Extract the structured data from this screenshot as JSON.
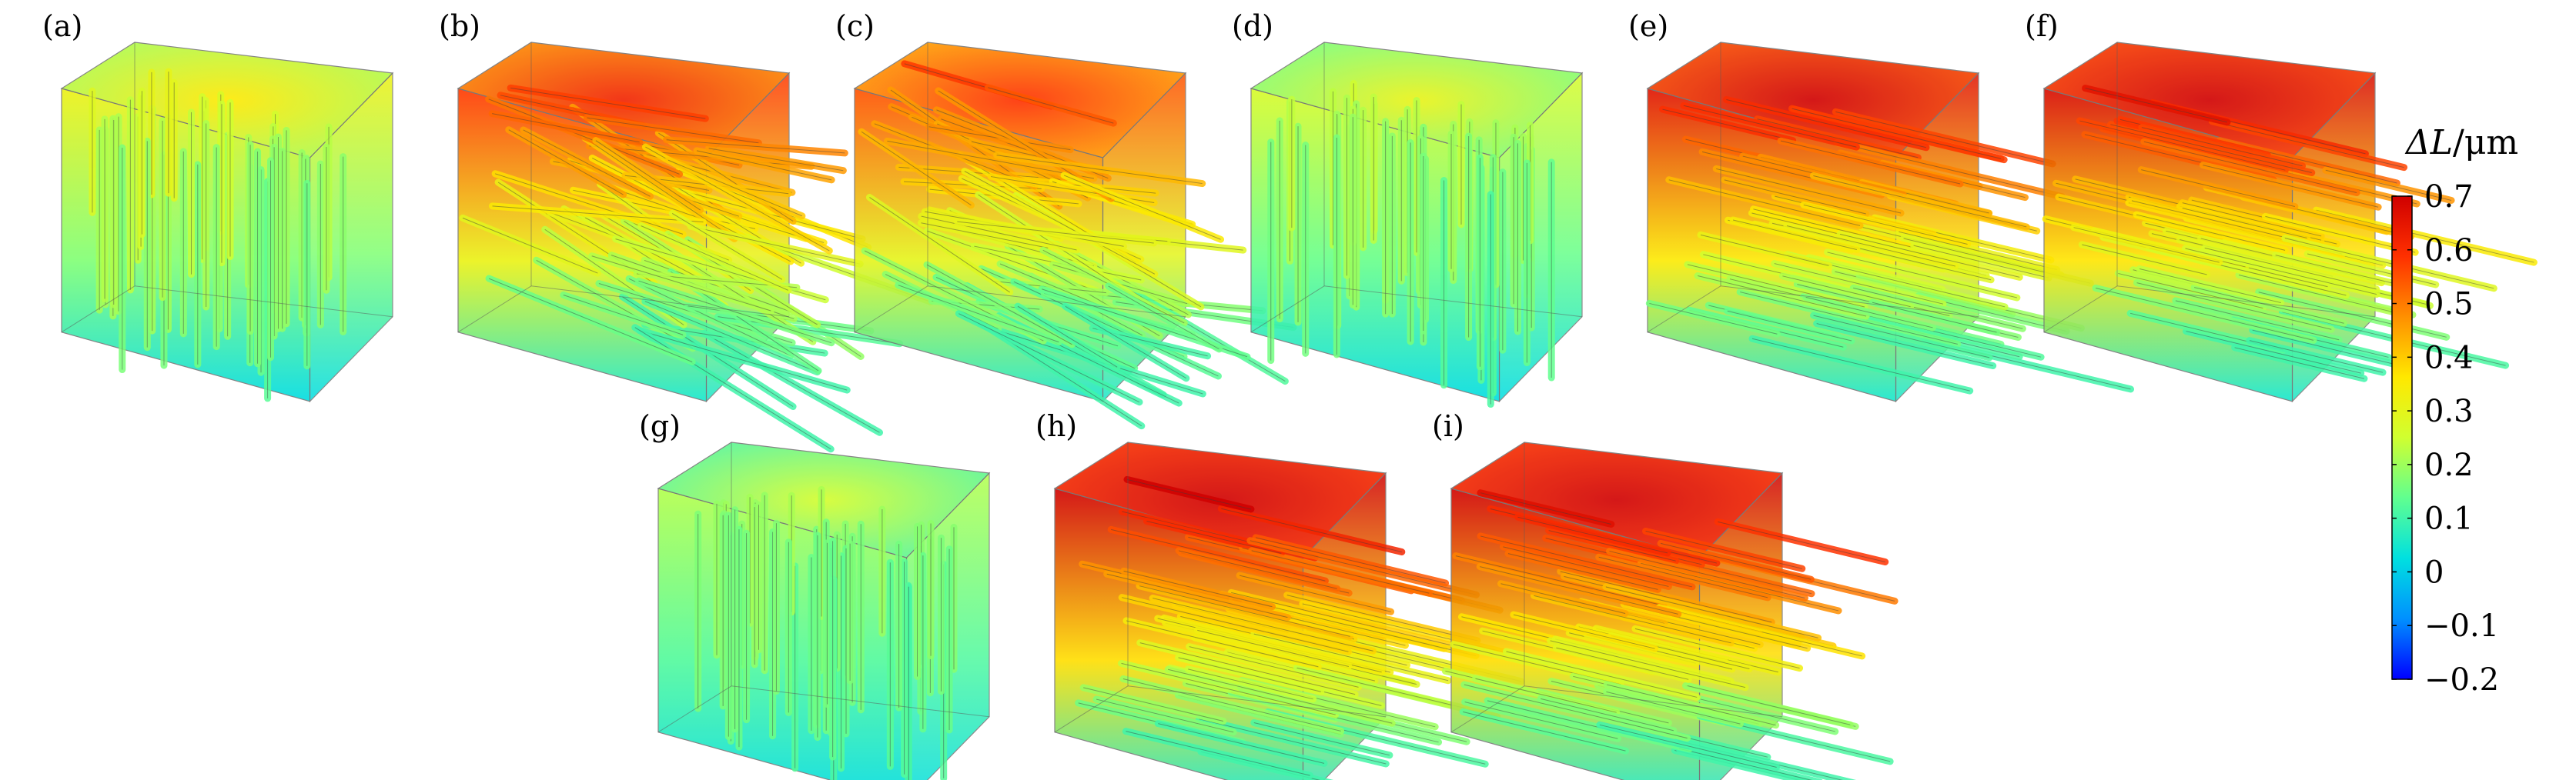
{
  "panels": [
    {
      "label": "(a)",
      "orientation": "vertical",
      "top_level": 0.32,
      "bottom_level": 0.02
    },
    {
      "label": "(b)",
      "orientation": "random",
      "top_level": 0.58,
      "bottom_level": 0.05
    },
    {
      "label": "(c)",
      "orientation": "random",
      "top_level": 0.55,
      "bottom_level": 0.05
    },
    {
      "label": "(d)",
      "orientation": "vertical",
      "top_level": 0.27,
      "bottom_level": 0.02
    },
    {
      "label": "(e)",
      "orientation": "horizontal",
      "top_level": 0.66,
      "bottom_level": 0.05
    },
    {
      "label": "(f)",
      "orientation": "horizontal",
      "top_level": 0.68,
      "bottom_level": 0.05
    },
    {
      "label": "(g)",
      "orientation": "vertical",
      "top_level": 0.22,
      "bottom_level": 0.02
    },
    {
      "label": "(h)",
      "orientation": "horizontal",
      "top_level": 0.7,
      "bottom_level": 0.05
    },
    {
      "label": "(i)",
      "orientation": "horizontal",
      "top_level": 0.7,
      "bottom_level": 0.05
    }
  ],
  "colorbar": {
    "title_main": "ΔL",
    "title_unit": "/μm",
    "min": -0.2,
    "max": 0.7,
    "ticks": [
      "0.7",
      "0.6",
      "0.5",
      "0.4",
      "0.3",
      "0.2",
      "0.1",
      "0",
      "−0.1",
      "−0.2"
    ],
    "tick_values": [
      0.7,
      0.6,
      0.5,
      0.4,
      0.3,
      0.2,
      0.1,
      0,
      -0.1,
      -0.2
    ],
    "colors": [
      "#0000ff",
      "#0090ff",
      "#00e0e0",
      "#60ff90",
      "#d0ff30",
      "#ffe800",
      "#ff9000",
      "#ff3000",
      "#d00000"
    ]
  }
}
